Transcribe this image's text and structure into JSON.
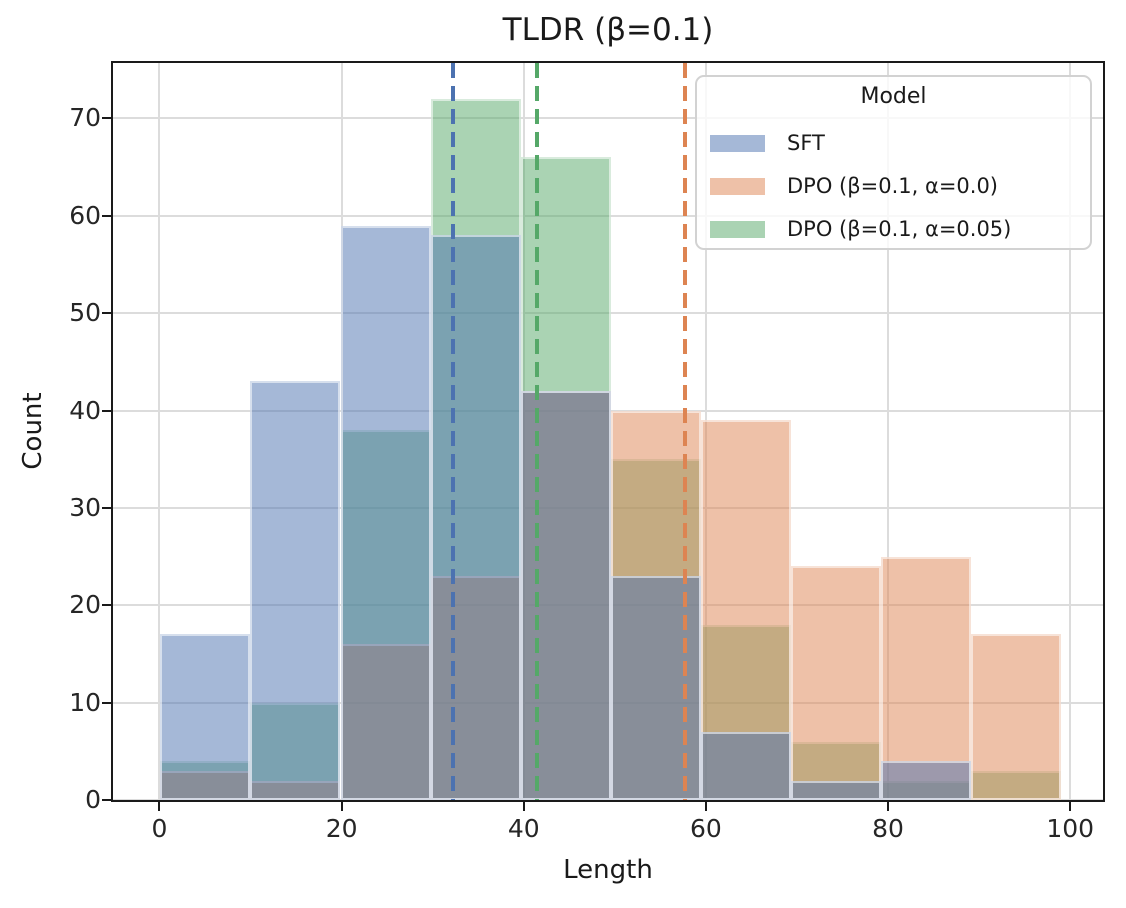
{
  "title": "TLDR (β=0.1)",
  "axes": {
    "xlabel": "Length",
    "ylabel": "Count"
  },
  "legend": {
    "title": "Model",
    "entries": [
      {
        "label": "SFT",
        "color": "#4c72b0"
      },
      {
        "label": "DPO (β=0.1, α=0.0)",
        "color": "#dd8452"
      },
      {
        "label": "DPO (β=0.1, α=0.05)",
        "color": "#55a868"
      }
    ]
  },
  "chart_data": {
    "type": "histogram",
    "title": "TLDR (β=0.1)",
    "xlabel": "Length",
    "ylabel": "Count",
    "bin_edges": [
      0.1,
      9.99,
      19.88,
      29.77,
      39.66,
      49.55,
      59.44,
      69.33,
      79.22,
      89.11,
      99.0
    ],
    "series": [
      {
        "name": "SFT",
        "color": "#4c72b0",
        "counts": [
          17,
          43,
          59,
          58,
          42,
          23,
          7,
          2,
          4,
          0
        ],
        "mean_line": 32.2
      },
      {
        "name": "DPO (β=0.1, α=0.0)",
        "color": "#dd8452",
        "counts": [
          3,
          2,
          16,
          23,
          42,
          40,
          39,
          24,
          25,
          17
        ],
        "mean_line": 57.7
      },
      {
        "name": "DPO (β=0.1, α=0.05)",
        "color": "#55a868",
        "counts": [
          4,
          10,
          38,
          72,
          66,
          35,
          18,
          6,
          2,
          3
        ],
        "mean_line": 41.5
      }
    ],
    "fill_alpha": 0.5,
    "draw_order": [
      2,
      1,
      0
    ],
    "mean_line_style": "dashed",
    "x_ticks": [
      0,
      20,
      40,
      60,
      80,
      100
    ],
    "y_ticks": [
      0,
      10,
      20,
      30,
      40,
      50,
      60,
      70
    ],
    "xlim": [
      -5.1,
      103.6
    ],
    "ylim": [
      0,
      75.7
    ],
    "grid": true,
    "legend_position": "upper right"
  }
}
